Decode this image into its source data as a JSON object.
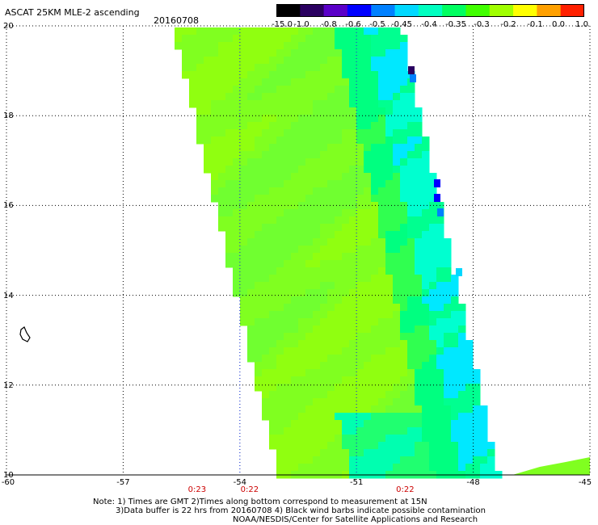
{
  "header": {
    "title": "ASCAT 25KM MLE-2 ascending",
    "date": "20160708"
  },
  "colorbar": {
    "labels": [
      "-15.0",
      "-1.0",
      "-0.8",
      "-0.6",
      "-0.5",
      "-0.45",
      "-0.4",
      "-0.35",
      "-0.3",
      "-0.2",
      "-0.1",
      "0.0",
      "1.0"
    ],
    "colors": [
      "#000000",
      "#2a0060",
      "#5a00c8",
      "#0000ff",
      "#0080ff",
      "#00d8ff",
      "#00ffc0",
      "#00ff60",
      "#40ff00",
      "#a0ff00",
      "#ffff00",
      "#ffa000",
      "#ff2000"
    ]
  },
  "map": {
    "lon_range": [
      -60,
      -45
    ],
    "lat_range": [
      10,
      20
    ],
    "x_ticks": [
      "-60",
      "-57",
      "-54",
      "-51",
      "-48",
      "-45"
    ],
    "y_ticks": [
      "20",
      "18",
      "16",
      "14",
      "12",
      "10"
    ],
    "time_labels": [
      {
        "text": "0:23",
        "lon": -55.1
      },
      {
        "text": "0:22",
        "lon": -53.75
      },
      {
        "text": "0:22",
        "lon": -49.75
      }
    ]
  },
  "footer": {
    "line1": "Note: 1) Times are GMT 2)Times along bottom correspond to measurement at 15N",
    "line2": "3)Data buffer is 22 hrs from 20160708 4) Black wind barbs indicate possible contamination",
    "line3": "NOAA/NESDIS/Center for Satellite Applications and Research"
  }
}
